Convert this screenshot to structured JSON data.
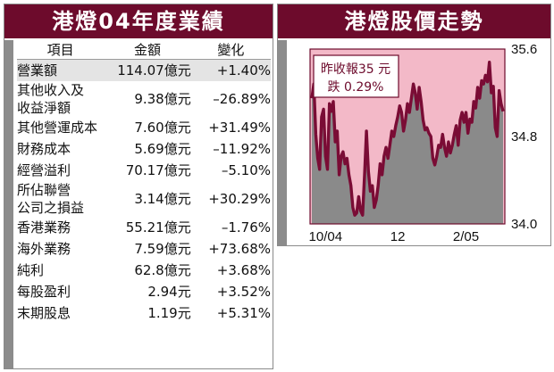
{
  "results": {
    "title": "港燈04年度業績",
    "headers": [
      "項目",
      "金額",
      "變化"
    ],
    "rows": [
      {
        "item": [
          "營業額"
        ],
        "amount": "114.07億元",
        "change": "+1.40%"
      },
      {
        "item": [
          "其他收入及",
          "收益淨額"
        ],
        "amount": "9.38億元",
        "change": "–26.89%"
      },
      {
        "item": [
          "其他營運成本"
        ],
        "amount": "7.60億元",
        "change": "+31.49%"
      },
      {
        "item": [
          "財務成本"
        ],
        "amount": "5.69億元",
        "change": "–11.92%"
      },
      {
        "item": [
          "經營溢利"
        ],
        "amount": "70.17億元",
        "change": "–5.10%"
      },
      {
        "item": [
          "所佔聯營",
          "公司之損益"
        ],
        "amount": "3.14億元",
        "change": "+30.29%"
      },
      {
        "item": [
          "香港業務"
        ],
        "amount": "55.21億元",
        "change": "–1.76%"
      },
      {
        "item": [
          "海外業務"
        ],
        "amount": "7.59億元",
        "change": "+73.68%"
      },
      {
        "item": [
          "純利"
        ],
        "amount": "62.8億元",
        "change": "+3.68%"
      },
      {
        "item": [
          "每股盈利"
        ],
        "amount": "2.94元",
        "change": "+3.52%"
      },
      {
        "item": [
          "末期股息"
        ],
        "amount": "1.19元",
        "change": "+5.31%"
      }
    ]
  },
  "chart_data": [
    {
      "type": "table",
      "title": "港燈04年度業績",
      "columns": [
        "項目",
        "金額",
        "變化"
      ],
      "rows": [
        [
          "營業額",
          "114.07億元",
          "+1.40%"
        ],
        [
          "其他收入及收益淨額",
          "9.38億元",
          "–26.89%"
        ],
        [
          "其他營運成本",
          "7.60億元",
          "+31.49%"
        ],
        [
          "財務成本",
          "5.69億元",
          "–11.92%"
        ],
        [
          "經營溢利",
          "70.17億元",
          "–5.10%"
        ],
        [
          "所佔聯營公司之損益",
          "3.14億元",
          "+30.29%"
        ],
        [
          "香港業務",
          "55.21億元",
          "–1.76%"
        ],
        [
          "海外業務",
          "7.59億元",
          "+73.68%"
        ],
        [
          "純利",
          "62.8億元",
          "+3.68%"
        ],
        [
          "每股盈利",
          "2.94元",
          "+3.52%"
        ],
        [
          "末期股息",
          "1.19元",
          "+5.31%"
        ]
      ]
    },
    {
      "type": "area",
      "title": "港燈股價走勢",
      "xlabel": "",
      "ylabel": "",
      "ylim": [
        34.0,
        35.6
      ],
      "y_ticks": [
        "35.6",
        "34.8",
        "34.0"
      ],
      "x_ticks": [
        {
          "label": "10/04",
          "index": 7
        },
        {
          "label": "12",
          "index": 44
        },
        {
          "label": "2/05",
          "index": 79
        }
      ],
      "grid": false,
      "annotation": {
        "lines": [
          "昨收報35 元",
          "跌 0.29%"
        ]
      },
      "series": [
        {
          "values": [
            35.15,
            35.28,
            34.82,
            34.6,
            34.5,
            34.98,
            35.05,
            34.62,
            34.5,
            35.1,
            35.03,
            35.12,
            34.75,
            34.85,
            34.45,
            34.62,
            34.66,
            34.55,
            34.6,
            34.45,
            34.35,
            34.15,
            34.08,
            34.1,
            34.25,
            34.12,
            34.08,
            34.45,
            34.85,
            34.48,
            34.3,
            34.35,
            34.15,
            34.22,
            34.35,
            34.55,
            34.45,
            34.62,
            34.7,
            34.6,
            34.72,
            34.85,
            34.8,
            34.9,
            34.98,
            35.08,
            35.02,
            34.85,
            34.95,
            35.1,
            35.02,
            35.15,
            35.28,
            35.2,
            35.05,
            35.25,
            35.12,
            34.95,
            34.86,
            34.88,
            34.83,
            34.8,
            34.6,
            34.54,
            34.62,
            34.72,
            34.7,
            34.82,
            34.7,
            34.62,
            34.75,
            34.65,
            34.72,
            34.82,
            34.9,
            34.72,
            34.95,
            35.02,
            34.93,
            35.02,
            34.83,
            34.96,
            34.93,
            35.12,
            35.06,
            35.25,
            35.15,
            35.31,
            35.28,
            35.36,
            35.3,
            35.48,
            35.2,
            35.26,
            34.88,
            34.8,
            35.22,
            35.1,
            35.03
          ]
        }
      ]
    }
  ],
  "stock": {
    "title": "港燈股價走勢",
    "annotation_lines": [
      "昨收報35 元",
      "跌 0.29%"
    ],
    "y_ticks": [
      "35.6",
      "34.8",
      "34.0"
    ],
    "x_ticks": [
      "10/04",
      "12",
      "2/05"
    ]
  },
  "colors": {
    "header": "#6d0b2c",
    "line": "#7a0c35",
    "plot_background": "#f3b9c8",
    "area_fill": "#8a8a8a",
    "stripe": "#8c8c8c",
    "row_shade": "#e4e4e4"
  }
}
